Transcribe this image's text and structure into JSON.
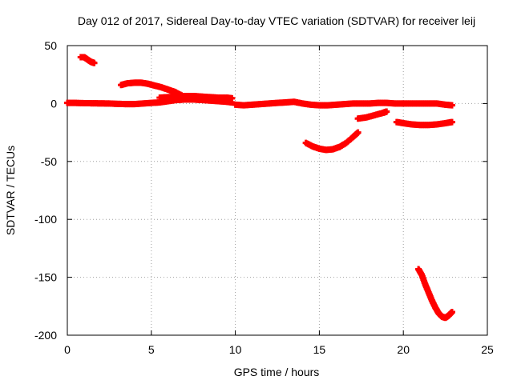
{
  "chart_data": {
    "type": "scatter",
    "title": "Day 012 of 2017, Sidereal Day-to-day VTEC variation (SDTVAR) for receiver leij",
    "xlabel": "GPS time / hours",
    "ylabel": "SDTVAR / TECUs",
    "xlim": [
      0,
      25
    ],
    "ylim": [
      -200,
      50
    ],
    "xticks": [
      0,
      5,
      10,
      15,
      20,
      25
    ],
    "yticks": [
      -200,
      -150,
      -100,
      -50,
      0,
      50
    ],
    "grid": true,
    "legend": "none",
    "marker": "plus",
    "series_color": "#ff0000",
    "series": [
      {
        "points": [
          [
            0.8,
            40
          ],
          [
            1.0,
            40
          ],
          [
            1.2,
            38
          ],
          [
            1.4,
            36
          ],
          [
            1.6,
            35
          ]
        ]
      },
      {
        "points": [
          [
            3.2,
            16
          ],
          [
            3.6,
            17.5
          ],
          [
            4.0,
            18
          ],
          [
            4.4,
            18
          ],
          [
            4.8,
            17
          ],
          [
            5.2,
            15.5
          ],
          [
            5.6,
            14
          ],
          [
            6.0,
            12
          ],
          [
            6.4,
            10
          ],
          [
            6.8,
            7
          ]
        ]
      },
      {
        "points": [
          [
            0.0,
            0.5
          ],
          [
            0.5,
            0.5
          ],
          [
            1.0,
            0.3
          ],
          [
            1.5,
            0.2
          ],
          [
            2.0,
            0.1
          ],
          [
            2.5,
            0
          ],
          [
            3.0,
            -0.3
          ],
          [
            3.5,
            -0.5
          ],
          [
            4.0,
            -0.5
          ],
          [
            4.5,
            0
          ],
          [
            5.0,
            0.5
          ],
          [
            5.5,
            1
          ],
          [
            6.0,
            2
          ],
          [
            6.5,
            3
          ],
          [
            7.0,
            3.5
          ],
          [
            7.5,
            3.5
          ],
          [
            8.0,
            3
          ],
          [
            8.5,
            2.5
          ],
          [
            9.0,
            2
          ],
          [
            9.5,
            1.5
          ],
          [
            9.8,
            1
          ]
        ]
      },
      {
        "points": [
          [
            5.5,
            5
          ],
          [
            6.0,
            5.5
          ],
          [
            6.5,
            6
          ],
          [
            7.0,
            6.5
          ],
          [
            7.5,
            6.5
          ],
          [
            8.0,
            6
          ],
          [
            8.5,
            5.5
          ],
          [
            9.0,
            5
          ],
          [
            9.5,
            5
          ],
          [
            9.8,
            4.5
          ]
        ]
      },
      {
        "points": [
          [
            10.0,
            -1
          ],
          [
            10.5,
            -1.5
          ],
          [
            11.0,
            -1
          ],
          [
            11.5,
            -0.5
          ],
          [
            12.0,
            0
          ],
          [
            12.5,
            0.5
          ],
          [
            13.0,
            1
          ],
          [
            13.5,
            1.5
          ],
          [
            14.0,
            0
          ],
          [
            14.5,
            -1
          ],
          [
            15.0,
            -1.5
          ],
          [
            15.5,
            -1.5
          ],
          [
            16.0,
            -1
          ],
          [
            16.5,
            -0.5
          ],
          [
            17.0,
            0
          ],
          [
            17.5,
            0
          ],
          [
            18.0,
            0
          ],
          [
            18.5,
            0.5
          ],
          [
            19.0,
            0.5
          ],
          [
            19.5,
            0
          ],
          [
            20.0,
            0
          ],
          [
            20.5,
            0
          ],
          [
            21.0,
            0
          ],
          [
            21.5,
            0
          ],
          [
            22.0,
            0
          ],
          [
            22.5,
            -1
          ],
          [
            22.9,
            -1.5
          ]
        ]
      },
      {
        "points": [
          [
            14.2,
            -34
          ],
          [
            14.6,
            -37
          ],
          [
            15.0,
            -39
          ],
          [
            15.4,
            -40
          ],
          [
            15.8,
            -39.5
          ],
          [
            16.2,
            -37.5
          ],
          [
            16.6,
            -34
          ],
          [
            17.0,
            -29
          ],
          [
            17.3,
            -25
          ]
        ]
      },
      {
        "points": [
          [
            17.3,
            -13
          ],
          [
            17.8,
            -12
          ],
          [
            18.3,
            -10
          ],
          [
            18.8,
            -8
          ],
          [
            19.0,
            -7
          ]
        ]
      },
      {
        "points": [
          [
            19.6,
            -16
          ],
          [
            20.0,
            -17
          ],
          [
            20.5,
            -18
          ],
          [
            21.0,
            -18.5
          ],
          [
            21.5,
            -18.5
          ],
          [
            22.0,
            -18
          ],
          [
            22.5,
            -17
          ],
          [
            22.9,
            -16
          ]
        ]
      },
      {
        "points": [
          [
            20.9,
            -143
          ],
          [
            21.1,
            -148
          ],
          [
            21.3,
            -156
          ],
          [
            21.5,
            -163
          ],
          [
            21.7,
            -170
          ],
          [
            21.9,
            -176
          ],
          [
            22.1,
            -181
          ],
          [
            22.3,
            -184
          ],
          [
            22.5,
            -185
          ],
          [
            22.7,
            -183
          ],
          [
            22.9,
            -180
          ]
        ]
      }
    ]
  }
}
